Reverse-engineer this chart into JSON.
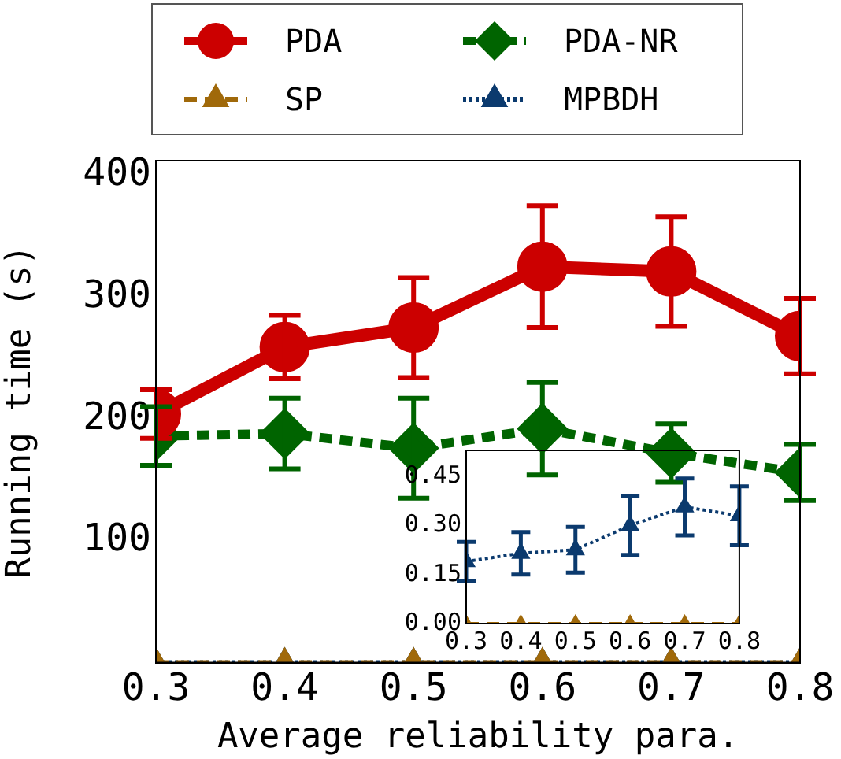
{
  "chart_data": [
    {
      "type": "line",
      "xlabel": "Average reliability para.",
      "ylabel": "Running time (s)",
      "x": [
        0.3,
        0.4,
        0.5,
        0.6,
        0.7,
        0.8
      ],
      "xlim": [
        0.3,
        0.8
      ],
      "xticks": [
        0.3,
        0.4,
        0.5,
        0.6,
        0.7,
        0.8
      ],
      "ylim": [
        0,
        412
      ],
      "yticks": [
        100,
        200,
        300,
        400
      ],
      "legend": "top",
      "series": [
        {
          "name": "PDA",
          "color": "#cc0000",
          "marker": "circle",
          "line_style": "solid",
          "values": [
            204,
            259,
            275,
            325,
            321,
            268
          ],
          "errors": [
            20,
            26,
            41,
            50,
            45,
            31
          ]
        },
        {
          "name": "PDA-NR",
          "color": "#006400",
          "marker": "diamond",
          "line_style": "dashed",
          "values": [
            186,
            188,
            176,
            192,
            172,
            156
          ],
          "errors": [
            24,
            29,
            41,
            38,
            24,
            23
          ]
        },
        {
          "name": "SP",
          "color": "#a0690a",
          "marker": "triangle",
          "line_style": "dashed",
          "values": [
            0,
            0,
            0,
            0,
            0,
            0
          ]
        },
        {
          "name": "MPBDH",
          "color": "#0b3a6e",
          "marker": "triangle",
          "line_style": "dotted",
          "values": [
            0,
            0,
            0,
            0,
            0,
            0
          ]
        }
      ]
    },
    {
      "type": "line",
      "x": [
        0.3,
        0.4,
        0.5,
        0.6,
        0.7,
        0.8
      ],
      "xlim": [
        0.3,
        0.8
      ],
      "xticks": [
        0.3,
        0.4,
        0.5,
        0.6,
        0.7,
        0.8
      ],
      "ylim": [
        0,
        0.53
      ],
      "yticks": [
        {
          "value": 0,
          "label": "0.00"
        },
        {
          "value": 0.15,
          "label": "0.15"
        },
        {
          "value": 0.3,
          "label": "0.30"
        },
        {
          "value": 0.45,
          "label": "0.45"
        }
      ],
      "series": [
        {
          "color": "#a0690a",
          "marker": "triangle",
          "line_style": "dashed",
          "values": [
            0,
            0,
            0,
            0,
            0,
            0
          ]
        },
        {
          "color": "#0b3a6e",
          "marker": "triangle",
          "line_style": "dotted",
          "values": [
            0.19,
            0.215,
            0.226,
            0.3,
            0.357,
            0.33
          ],
          "errors": [
            0.06,
            0.065,
            0.07,
            0.09,
            0.087,
            0.09
          ]
        }
      ]
    }
  ]
}
